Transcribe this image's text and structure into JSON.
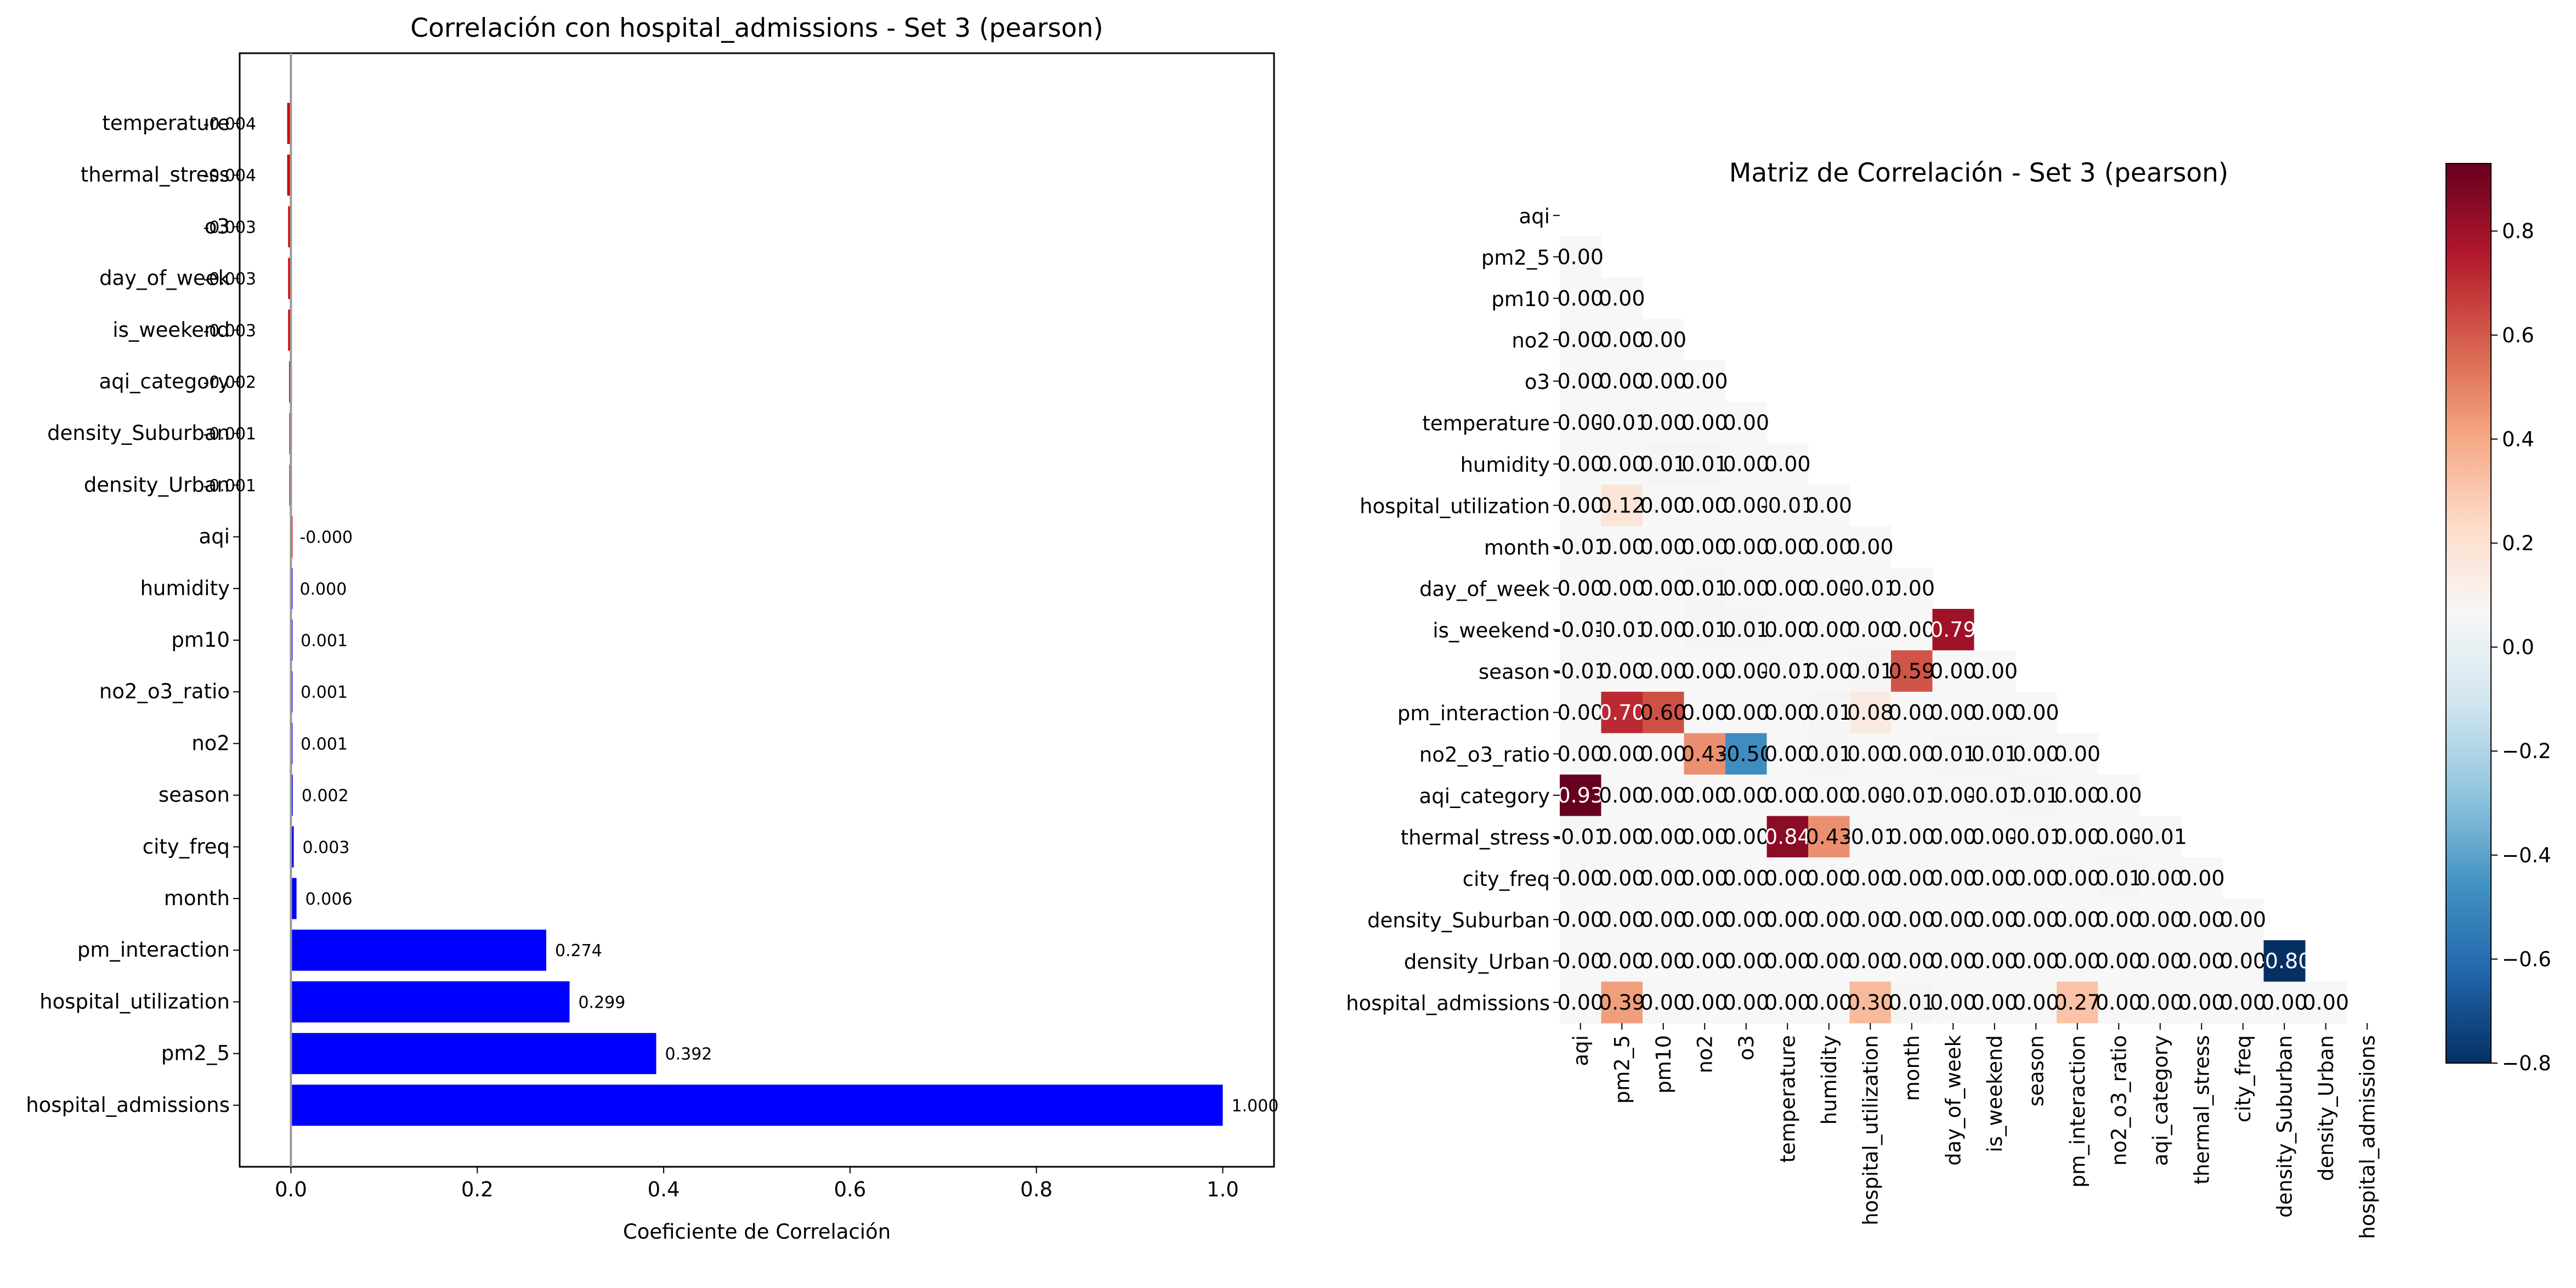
{
  "chart_data": [
    {
      "type": "bar",
      "orientation": "horizontal",
      "title": "Correlación con hospital_admissions - Set 3 (pearson)",
      "xlabel": "Coeficiente de Correlación",
      "ylabel": "",
      "xlim": [
        -0.055,
        1.055
      ],
      "xticks": [
        "0.0",
        "0.2",
        "0.4",
        "0.6",
        "0.8",
        "1.0"
      ],
      "grid": false,
      "categories": [
        "temperature",
        "thermal_stress",
        "o3",
        "day_of_week",
        "is_weekend",
        "aqi_category",
        "density_Suburban",
        "density_Urban",
        "aqi",
        "humidity",
        "pm10",
        "no2_o3_ratio",
        "no2",
        "season",
        "city_freq",
        "month",
        "pm_interaction",
        "hospital_utilization",
        "pm2_5",
        "hospital_admissions"
      ],
      "values": [
        -0.004,
        -0.004,
        -0.003,
        -0.003,
        -0.003,
        -0.002,
        -0.001,
        -0.001,
        -0.0,
        0.0,
        0.001,
        0.001,
        0.001,
        0.002,
        0.003,
        0.006,
        0.274,
        0.299,
        0.392,
        1.0
      ],
      "value_labels": [
        "-0.004",
        "-0.004",
        "-0.003",
        "-0.003",
        "-0.003",
        "-0.002",
        "-0.001",
        "-0.001",
        "-0.000",
        "0.000",
        "0.001",
        "0.001",
        "0.001",
        "0.002",
        "0.003",
        "0.006",
        "0.274",
        "0.299",
        "0.392",
        "1.000"
      ],
      "colors": {
        "positive": "#0000ff",
        "negative": "#d40000"
      }
    },
    {
      "type": "heatmap",
      "title": "Matriz de Correlación - Set 3 (pearson)",
      "mask": "upper-triangle",
      "variables": [
        "aqi",
        "pm2_5",
        "pm10",
        "no2",
        "o3",
        "temperature",
        "humidity",
        "hospital_utilization",
        "month",
        "day_of_week",
        "is_weekend",
        "season",
        "pm_interaction",
        "no2_o3_ratio",
        "aqi_category",
        "thermal_stress",
        "city_freq",
        "density_Suburban",
        "density_Urban",
        "hospital_admissions"
      ],
      "matrix_lower": [
        [],
        [
          -0.0
        ],
        [
          -0.0,
          -0.0
        ],
        [
          -0.0,
          0.0,
          0.0
        ],
        [
          -0.0,
          -0.0,
          0.0,
          -0.0
        ],
        [
          -0.0,
          -0.01,
          -0.0,
          0.0,
          -0.0
        ],
        [
          -0.0,
          0.0,
          0.01,
          0.01,
          -0.0,
          -0.0
        ],
        [
          -0.0,
          0.12,
          -0.0,
          0.0,
          0.0,
          -0.01,
          -0.0
        ],
        [
          -0.01,
          -0.0,
          0.0,
          0.0,
          0.0,
          -0.0,
          0.0,
          0.0
        ],
        [
          -0.0,
          -0.0,
          0.0,
          0.01,
          0.0,
          0.0,
          0.0,
          -0.01,
          -0.0
        ],
        [
          -0.01,
          -0.01,
          0.0,
          0.01,
          0.01,
          0.0,
          0.0,
          -0.0,
          -0.0,
          0.79
        ],
        [
          -0.01,
          -0.0,
          0.0,
          0.0,
          0.0,
          -0.01,
          -0.0,
          0.01,
          0.59,
          -0.0,
          0.0
        ],
        [
          -0.0,
          0.7,
          0.6,
          0.0,
          -0.0,
          0.0,
          0.01,
          0.08,
          -0.0,
          -0.0,
          -0.0,
          0.0
        ],
        [
          -0.0,
          -0.0,
          -0.0,
          0.43,
          -0.5,
          0.0,
          0.01,
          -0.0,
          -0.0,
          0.01,
          0.01,
          -0.0,
          -0.0
        ],
        [
          0.93,
          -0.0,
          -0.0,
          -0.0,
          -0.0,
          -0.0,
          -0.0,
          -0.0,
          -0.01,
          -0.0,
          -0.01,
          0.01,
          -0.0,
          0.0
        ],
        [
          -0.01,
          -0.0,
          0.0,
          0.0,
          -0.0,
          0.84,
          0.43,
          -0.01,
          0.0,
          -0.0,
          0.0,
          -0.01,
          0.0,
          -0.0,
          -0.01
        ],
        [
          -0.0,
          0.0,
          0.0,
          0.0,
          0.0,
          -0.0,
          0.0,
          0.0,
          0.0,
          -0.0,
          0.0,
          0.0,
          -0.0,
          0.01,
          -0.0,
          0.0
        ],
        [
          -0.0,
          0.0,
          0.0,
          -0.0,
          -0.0,
          -0.0,
          -0.0,
          0.0,
          0.0,
          0.0,
          0.0,
          0.0,
          0.0,
          -0.0,
          -0.0,
          -0.0,
          0.0
        ],
        [
          -0.0,
          0.0,
          -0.0,
          0.0,
          0.0,
          0.0,
          0.0,
          0.0,
          -0.0,
          0.0,
          -0.0,
          -0.0,
          0.0,
          0.0,
          -0.0,
          0.0,
          -0.0,
          -0.8
        ],
        [
          -0.0,
          0.39,
          0.0,
          0.0,
          -0.0,
          -0.0,
          0.0,
          0.3,
          0.01,
          -0.0,
          -0.0,
          0.0,
          0.27,
          0.0,
          -0.0,
          -0.0,
          0.0,
          -0.0,
          -0.0
        ]
      ],
      "colorbar": {
        "min": -0.8,
        "max": 0.93,
        "ticks": [
          "0.8",
          "0.6",
          "0.4",
          "0.2",
          "0.0",
          "−0.2",
          "−0.4",
          "−0.6",
          "−0.8"
        ],
        "colormap": "RdBu_r"
      }
    }
  ]
}
